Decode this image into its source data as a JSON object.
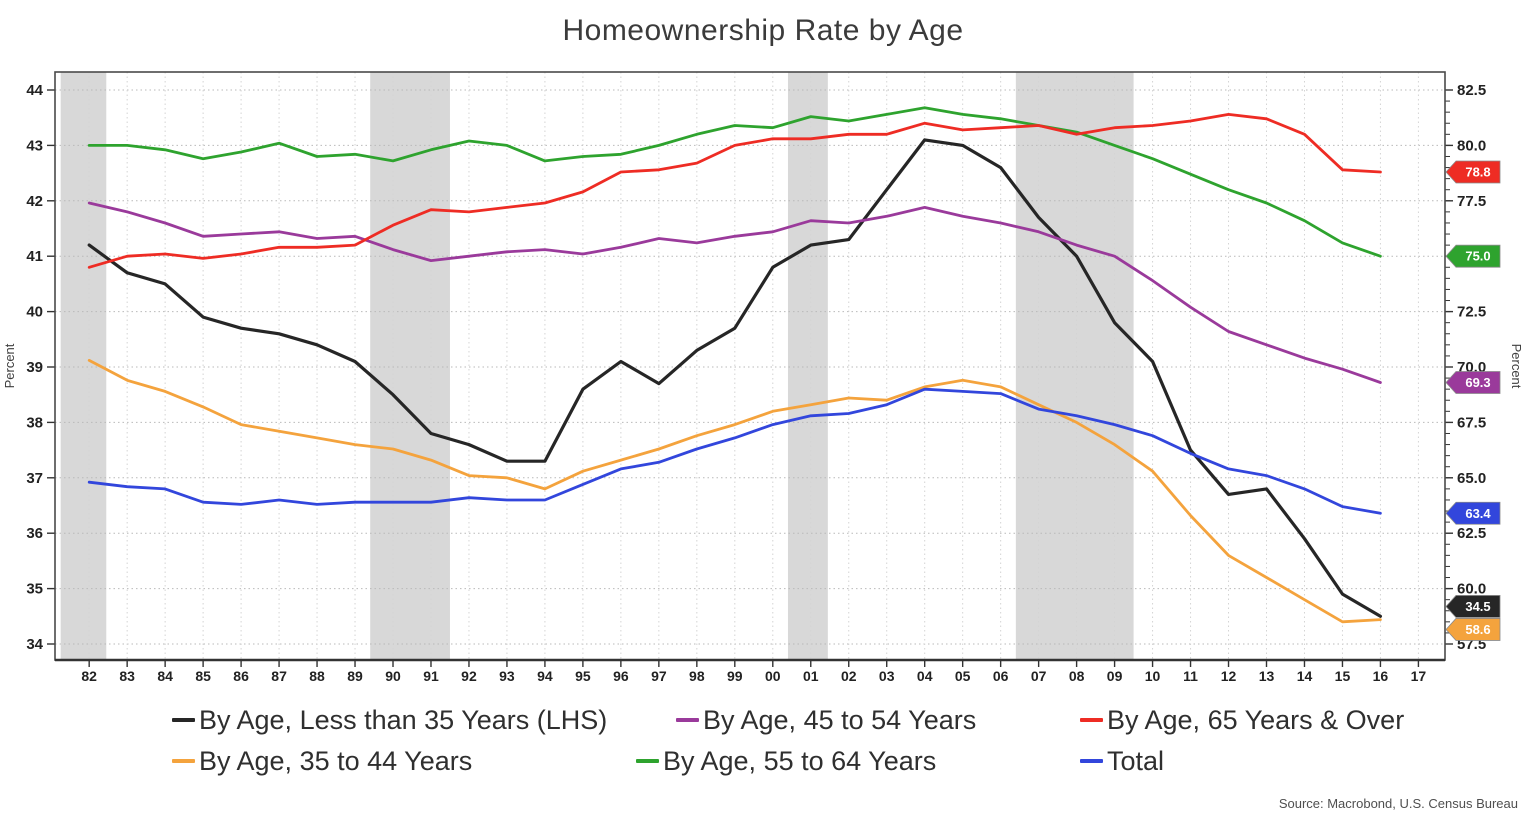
{
  "title": "Homeownership Rate by Age",
  "source": "Source: Macrobond, U.S. Census Bureau",
  "left_axis": {
    "label": "Percent",
    "min": 34,
    "max": 44,
    "ticks": [
      44,
      43,
      42,
      41,
      40,
      39,
      38,
      37,
      36,
      35,
      34
    ]
  },
  "right_axis": {
    "label": "Percent",
    "min": 57.5,
    "max": 82.5,
    "ticks": [
      "82.5",
      "80.0",
      "77.5",
      "75.0",
      "72.5",
      "70.0",
      "67.5",
      "65.0",
      "62.5",
      "60.0",
      "57.5"
    ]
  },
  "x_axis": {
    "tick_years": [
      1982,
      1983,
      1984,
      1985,
      1986,
      1987,
      1988,
      1989,
      1990,
      1991,
      1992,
      1993,
      1994,
      1995,
      1996,
      1997,
      1998,
      1999,
      2000,
      2001,
      2002,
      2003,
      2004,
      2005,
      2006,
      2007,
      2008,
      2009,
      2010,
      2011,
      2012,
      2013,
      2014,
      2015,
      2016,
      2017
    ],
    "tick_labels": [
      "82",
      "83",
      "84",
      "85",
      "86",
      "87",
      "88",
      "89",
      "90",
      "91",
      "92",
      "93",
      "94",
      "95",
      "96",
      "97",
      "98",
      "99",
      "00",
      "01",
      "02",
      "03",
      "04",
      "05",
      "06",
      "07",
      "08",
      "09",
      "10",
      "11",
      "12",
      "13",
      "14",
      "15",
      "16",
      "17"
    ]
  },
  "recession_bands": [
    [
      1981.25,
      1982.45
    ],
    [
      1989.4,
      1991.5
    ],
    [
      2000.4,
      2001.45
    ],
    [
      2006.4,
      2009.5
    ]
  ],
  "colors": {
    "band": "#d8d8d8",
    "grid_h": "#b9b9b9",
    "grid_v": "#d4d4d4",
    "border": "#4a4a4a",
    "tick": "#333333",
    "tick_label": "#222222"
  },
  "chart_data": {
    "type": "line",
    "title": "Homeownership Rate by Age",
    "xlabel": "",
    "ylabel_left": "Percent",
    "ylabel_right": "Percent",
    "ylim_left": [
      34,
      44
    ],
    "ylim_right": [
      57.5,
      82.5
    ],
    "grid": true,
    "x": [
      1982,
      1983,
      1984,
      1985,
      1986,
      1987,
      1988,
      1989,
      1990,
      1991,
      1992,
      1993,
      1994,
      1995,
      1996,
      1997,
      1998,
      1999,
      2000,
      2001,
      2002,
      2003,
      2004,
      2005,
      2006,
      2007,
      2008,
      2009,
      2010,
      2011,
      2012,
      2013,
      2014,
      2015,
      2016
    ],
    "series": [
      {
        "name": "By Age, Less than 35 Years (LHS)",
        "axis": "left",
        "color": "#262626",
        "end_label": "34.5",
        "values": [
          41.2,
          40.7,
          40.5,
          39.9,
          39.7,
          39.6,
          39.4,
          39.1,
          38.5,
          37.8,
          37.6,
          37.3,
          37.3,
          38.6,
          39.1,
          38.7,
          39.3,
          39.7,
          40.8,
          41.2,
          41.3,
          42.2,
          43.1,
          43.0,
          42.6,
          41.7,
          41.0,
          39.8,
          39.1,
          37.5,
          36.7,
          36.8,
          35.9,
          34.9,
          34.5
        ]
      },
      {
        "name": "By Age, 35 to 44 Years",
        "axis": "right",
        "color": "#f4a33d",
        "end_label": "58.6",
        "values": [
          70.3,
          69.4,
          68.9,
          68.2,
          67.4,
          67.1,
          66.8,
          66.5,
          66.3,
          65.8,
          65.1,
          65.0,
          64.5,
          65.3,
          65.8,
          66.3,
          66.9,
          67.4,
          68.0,
          68.3,
          68.6,
          68.5,
          69.1,
          69.4,
          69.1,
          68.3,
          67.5,
          66.5,
          65.3,
          63.3,
          61.5,
          60.5,
          59.5,
          58.5,
          58.6
        ]
      },
      {
        "name": "By Age, 45 to 54 Years",
        "axis": "right",
        "color": "#9a3a9b",
        "end_label": "69.3",
        "values": [
          77.4,
          77.0,
          76.5,
          75.9,
          76.0,
          76.1,
          75.8,
          75.9,
          75.3,
          74.8,
          75.0,
          75.2,
          75.3,
          75.1,
          75.4,
          75.8,
          75.6,
          75.9,
          76.1,
          76.6,
          76.5,
          76.8,
          77.2,
          76.8,
          76.5,
          76.1,
          75.5,
          75.0,
          73.9,
          72.7,
          71.6,
          71.0,
          70.4,
          69.9,
          69.3
        ]
      },
      {
        "name": "By Age, 55 to 64 Years",
        "axis": "right",
        "color": "#2ea32e",
        "end_label": "75.0",
        "values": [
          80.0,
          80.0,
          79.8,
          79.4,
          79.7,
          80.1,
          79.5,
          79.6,
          79.3,
          79.8,
          80.2,
          80.0,
          79.3,
          79.5,
          79.6,
          80.0,
          80.5,
          80.9,
          80.8,
          81.3,
          81.1,
          81.4,
          81.7,
          81.4,
          81.2,
          80.9,
          80.6,
          80.0,
          79.4,
          78.7,
          78.0,
          77.4,
          76.6,
          75.6,
          75.0
        ]
      },
      {
        "name": "By Age, 65 Years & Over",
        "axis": "right",
        "color": "#ee2c24",
        "end_label": "78.8",
        "values": [
          74.5,
          75.0,
          75.1,
          74.9,
          75.1,
          75.4,
          75.4,
          75.5,
          76.4,
          77.1,
          77.0,
          77.2,
          77.4,
          77.9,
          78.8,
          78.9,
          79.2,
          80.0,
          80.3,
          80.3,
          80.5,
          80.5,
          81.0,
          80.7,
          80.8,
          80.9,
          80.5,
          80.8,
          80.9,
          81.1,
          81.4,
          81.2,
          80.5,
          78.9,
          78.8
        ]
      },
      {
        "name": "Total",
        "axis": "right",
        "color": "#3246dc",
        "end_label": "63.4",
        "values": [
          64.8,
          64.6,
          64.5,
          63.9,
          63.8,
          64.0,
          63.8,
          63.9,
          63.9,
          63.9,
          64.1,
          64.0,
          64.0,
          64.7,
          65.4,
          65.7,
          66.3,
          66.8,
          67.4,
          67.8,
          67.9,
          68.3,
          69.0,
          68.9,
          68.8,
          68.1,
          67.8,
          67.4,
          66.9,
          66.1,
          65.4,
          65.1,
          64.5,
          63.7,
          63.4
        ]
      }
    ]
  },
  "legend": {
    "row1": [
      0,
      2,
      4
    ],
    "row2": [
      1,
      3,
      5
    ]
  }
}
